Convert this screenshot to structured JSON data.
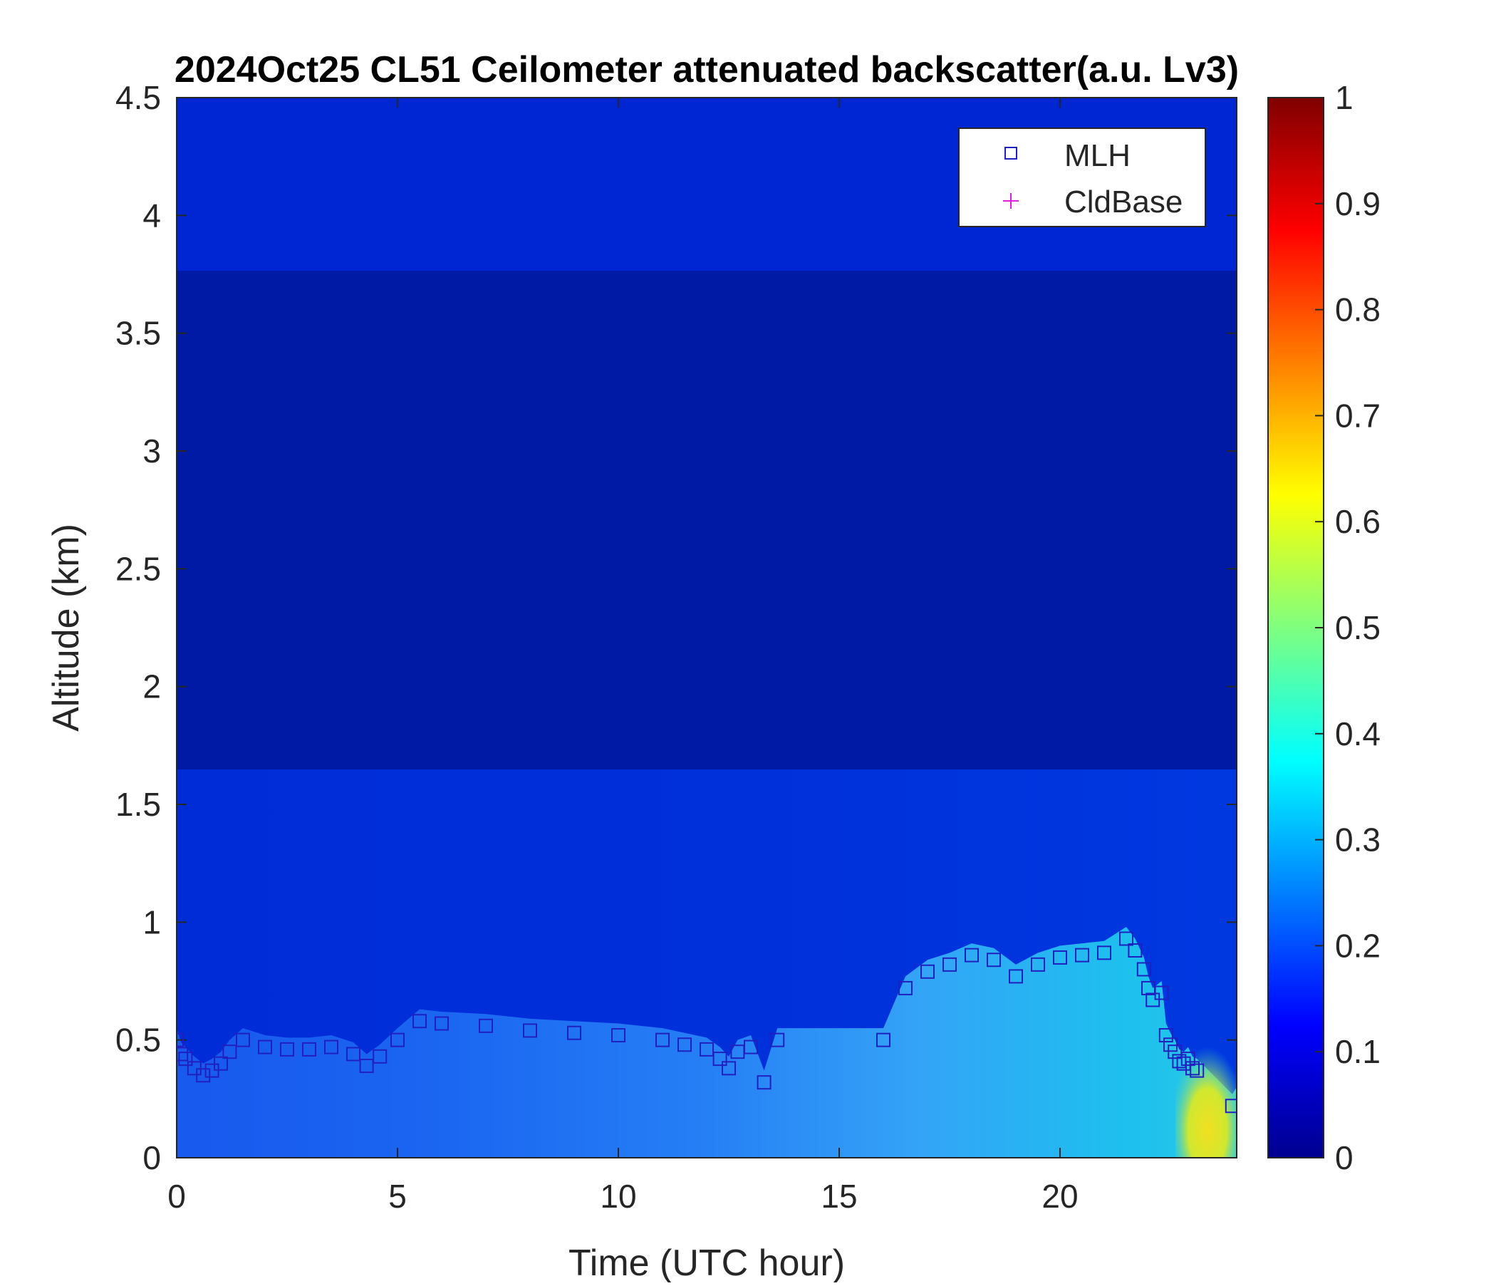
{
  "chart_data": {
    "type": "heatmap",
    "title": "2024Oct25 CL51 Ceilometer attenuated backscatter(a.u. Lv3)",
    "xlabel": "Time (UTC hour)",
    "ylabel": "Altitude (km)",
    "xlim": [
      0,
      24
    ],
    "ylim": [
      0,
      4.5
    ],
    "xticks": [
      0,
      5,
      10,
      15,
      20
    ],
    "yticks": [
      0,
      0.5,
      1,
      1.5,
      2,
      2.5,
      3,
      3.5,
      4,
      4.5
    ],
    "colorbar": {
      "colormap": "jet",
      "range": [
        0,
        1
      ],
      "ticks": [
        0,
        0.1,
        0.2,
        0.3,
        0.4,
        0.5,
        0.6,
        0.7,
        0.8,
        0.9,
        1
      ]
    },
    "legend": {
      "placement": "top-right",
      "entries": [
        {
          "name": "MLH",
          "marker": "square",
          "color": "#2020c0"
        },
        {
          "name": "CldBase",
          "marker": "plus",
          "color": "#e020e0"
        }
      ]
    },
    "series": [
      {
        "name": "MLH",
        "marker": "square",
        "x": [
          0,
          0.1,
          0.2,
          0.4,
          0.6,
          0.8,
          1.0,
          1.2,
          1.5,
          2.0,
          2.5,
          3.0,
          3.5,
          4.0,
          4.3,
          4.6,
          5.0,
          5.5,
          6.0,
          7.0,
          8.0,
          9.0,
          10.0,
          11.0,
          11.5,
          12.0,
          12.3,
          12.5,
          12.7,
          13.0,
          13.3,
          13.6,
          16.0,
          16.5,
          17.0,
          17.5,
          18.0,
          18.5,
          19.0,
          19.5,
          20.0,
          20.5,
          21.0,
          21.5,
          21.7,
          21.9,
          22.0,
          22.1,
          22.3,
          22.4,
          22.5,
          22.6,
          22.7,
          22.8,
          22.9,
          23.0,
          23.1,
          23.9
        ],
        "y": [
          0.5,
          0.44,
          0.42,
          0.38,
          0.35,
          0.37,
          0.4,
          0.45,
          0.5,
          0.47,
          0.46,
          0.46,
          0.47,
          0.44,
          0.39,
          0.43,
          0.5,
          0.58,
          0.57,
          0.56,
          0.54,
          0.53,
          0.52,
          0.5,
          0.48,
          0.46,
          0.42,
          0.38,
          0.45,
          0.47,
          0.32,
          0.5,
          0.5,
          0.72,
          0.79,
          0.82,
          0.86,
          0.84,
          0.77,
          0.82,
          0.85,
          0.86,
          0.87,
          0.93,
          0.88,
          0.8,
          0.72,
          0.67,
          0.7,
          0.52,
          0.48,
          0.45,
          0.41,
          0.4,
          0.42,
          0.38,
          0.37,
          0.22
        ]
      },
      {
        "name": "CldBase",
        "marker": "plus",
        "x": [],
        "y": []
      }
    ]
  }
}
